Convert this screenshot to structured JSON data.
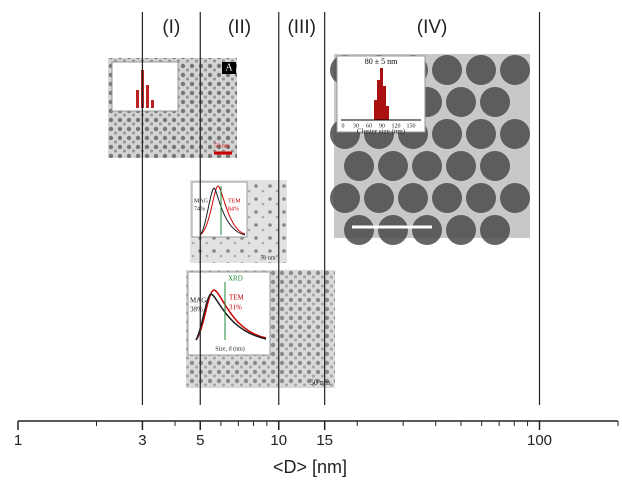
{
  "chart_data": {
    "type": "regions",
    "xlabel": "<D> [nm]",
    "log_x": true,
    "xlim": [
      1,
      200
    ],
    "xticks": [
      1,
      3,
      5,
      10,
      15,
      100
    ],
    "minor_xticks": [
      2,
      4,
      6,
      7,
      8,
      9,
      20,
      30,
      40,
      50,
      60,
      70,
      80,
      90,
      200
    ],
    "dividers": [
      3,
      5,
      10,
      15,
      100
    ],
    "regions": [
      "(I)",
      "(II)",
      "(III)",
      "(IV)"
    ],
    "panels": [
      {
        "texts": [
          "A",
          "50 nm"
        ]
      },
      {
        "texts": [
          "MAG",
          "74%",
          "TEM",
          "84%",
          "50 nm"
        ]
      },
      {
        "texts": [
          "XRD",
          "MAG",
          "38%",
          "TEM",
          "31%",
          "Size, d (nm)",
          "50 nm"
        ]
      },
      {
        "texts": [
          "80 ± 5 nm",
          "0",
          "30",
          "60",
          "90",
          "120",
          "150",
          "Cluster size (nm)"
        ]
      }
    ]
  }
}
